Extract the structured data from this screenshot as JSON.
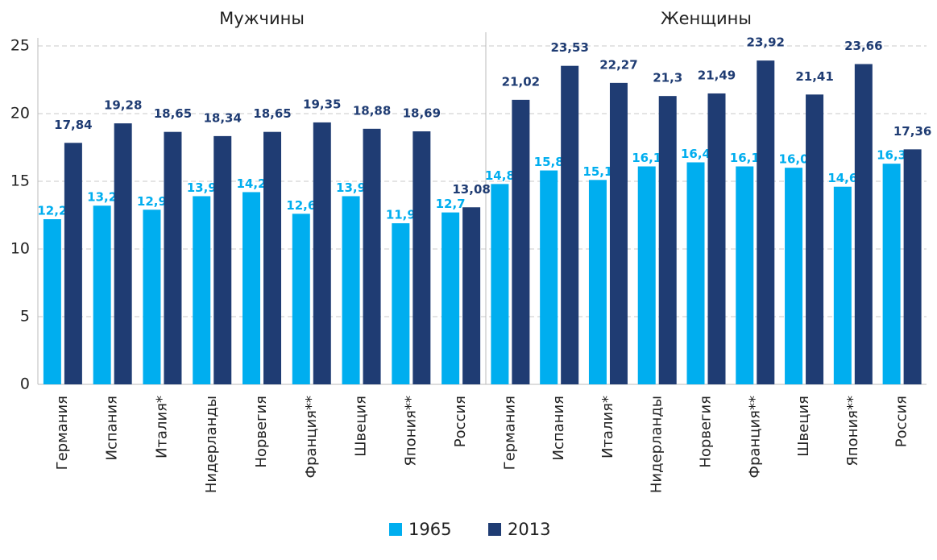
{
  "chart_data": {
    "type": "bar",
    "ylim": [
      0,
      25
    ],
    "yticks": [
      0,
      5,
      10,
      15,
      20,
      25
    ],
    "grid": true,
    "series": [
      {
        "name": "1965",
        "color": "#00aeef"
      },
      {
        "name": "2013",
        "color": "#1f3c73"
      }
    ],
    "panels": [
      {
        "title": "Мужчины",
        "categories": [
          "Германия",
          "Испания",
          "Италия*",
          "Нидерланды",
          "Норвегия",
          "Франция**",
          "Швеция",
          "Япония**",
          "Россия"
        ],
        "values": [
          [
            12.2,
            13.2,
            12.9,
            13.9,
            14.2,
            12.6,
            13.9,
            11.9,
            12.7
          ],
          [
            17.84,
            19.28,
            18.65,
            18.34,
            18.65,
            19.35,
            18.88,
            18.69,
            13.08
          ]
        ],
        "value_labels": [
          [
            "12,2",
            "13,2",
            "12,9",
            "13,9",
            "14,2",
            "12,6",
            "13,9",
            "11,9",
            "12,7"
          ],
          [
            "17,84",
            "19,28",
            "18,65",
            "18,34",
            "18,65",
            "19,35",
            "18,88",
            "18,69",
            "13,08"
          ]
        ]
      },
      {
        "title": "Женщины",
        "categories": [
          "Германия",
          "Испания",
          "Италия*",
          "Нидерланды",
          "Норвегия",
          "Франция**",
          "Швеция",
          "Япония**",
          "Россия"
        ],
        "values": [
          [
            14.8,
            15.8,
            15.1,
            16.1,
            16.4,
            16.1,
            16.0,
            14.6,
            16.3
          ],
          [
            21.02,
            23.53,
            22.27,
            21.3,
            21.49,
            23.92,
            21.41,
            23.66,
            17.36
          ]
        ],
        "value_labels": [
          [
            "14,8",
            "15,8",
            "15,1",
            "16,1",
            "16,4",
            "16,1",
            "16,0",
            "14,6",
            "16,3"
          ],
          [
            "21,02",
            "23,53",
            "22,27",
            "21,3",
            "21,49",
            "23,92",
            "21,41",
            "23,66",
            "17,36"
          ]
        ]
      }
    ]
  }
}
